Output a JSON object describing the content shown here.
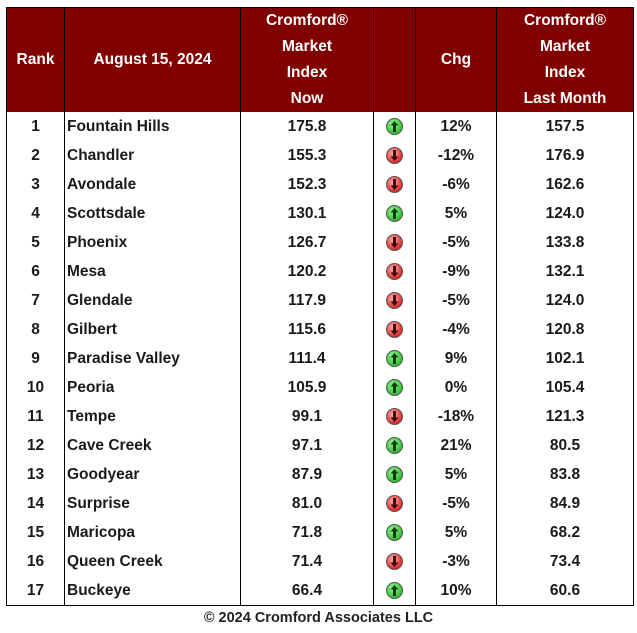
{
  "header": {
    "rank": "Rank",
    "date": "August 15, 2024",
    "now_lines": [
      "Cromford®",
      "Market",
      "Index",
      "Now"
    ],
    "chg": "Chg",
    "last_lines": [
      "Cromford®",
      "Market",
      "Index",
      "Last Month"
    ]
  },
  "rows": [
    {
      "rank": "1",
      "name": "Fountain Hills",
      "now": "175.8",
      "dir": "up",
      "chg": "12%",
      "last": "157.5"
    },
    {
      "rank": "2",
      "name": "Chandler",
      "now": "155.3",
      "dir": "down",
      "chg": "-12%",
      "last": "176.9"
    },
    {
      "rank": "3",
      "name": "Avondale",
      "now": "152.3",
      "dir": "down",
      "chg": "-6%",
      "last": "162.6"
    },
    {
      "rank": "4",
      "name": "Scottsdale",
      "now": "130.1",
      "dir": "up",
      "chg": "5%",
      "last": "124.0"
    },
    {
      "rank": "5",
      "name": "Phoenix",
      "now": "126.7",
      "dir": "down",
      "chg": "-5%",
      "last": "133.8"
    },
    {
      "rank": "6",
      "name": "Mesa",
      "now": "120.2",
      "dir": "down",
      "chg": "-9%",
      "last": "132.1"
    },
    {
      "rank": "7",
      "name": "Glendale",
      "now": "117.9",
      "dir": "down",
      "chg": "-5%",
      "last": "124.0"
    },
    {
      "rank": "8",
      "name": "Gilbert",
      "now": "115.6",
      "dir": "down",
      "chg": "-4%",
      "last": "120.8"
    },
    {
      "rank": "9",
      "name": "Paradise Valley",
      "now": "111.4",
      "dir": "up",
      "chg": "9%",
      "last": "102.1"
    },
    {
      "rank": "10",
      "name": "Peoria",
      "now": "105.9",
      "dir": "up",
      "chg": "0%",
      "last": "105.4"
    },
    {
      "rank": "11",
      "name": "Tempe",
      "now": "99.1",
      "dir": "down",
      "chg": "-18%",
      "last": "121.3"
    },
    {
      "rank": "12",
      "name": "Cave Creek",
      "now": "97.1",
      "dir": "up",
      "chg": "21%",
      "last": "80.5"
    },
    {
      "rank": "13",
      "name": "Goodyear",
      "now": "87.9",
      "dir": "up",
      "chg": "5%",
      "last": "83.8"
    },
    {
      "rank": "14",
      "name": "Surprise",
      "now": "81.0",
      "dir": "down",
      "chg": "-5%",
      "last": "84.9"
    },
    {
      "rank": "15",
      "name": "Maricopa",
      "now": "71.8",
      "dir": "up",
      "chg": "5%",
      "last": "68.2"
    },
    {
      "rank": "16",
      "name": "Queen Creek",
      "now": "71.4",
      "dir": "down",
      "chg": "-3%",
      "last": "73.4"
    },
    {
      "rank": "17",
      "name": "Buckeye",
      "now": "66.4",
      "dir": "up",
      "chg": "10%",
      "last": "60.6"
    }
  ],
  "icons": {
    "up": "green-up-arrow-icon",
    "down": "red-down-arrow-icon"
  },
  "colors": {
    "header_bg": "#800000",
    "header_text": "#ffffff",
    "up": "#2fbf2f",
    "down": "#e02a2a"
  },
  "footer": "© 2024 Cromford Associates LLC"
}
